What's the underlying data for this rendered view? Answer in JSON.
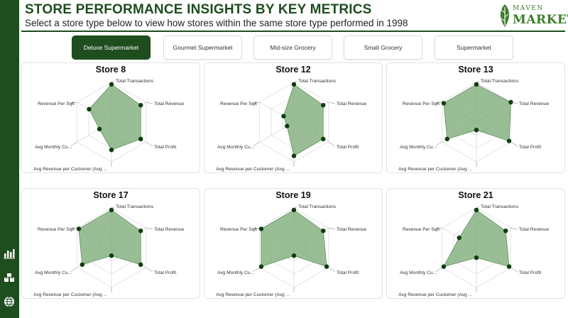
{
  "header": {
    "title": "STORE PERFORMANCE INSIGHTS BY KEY METRICS",
    "subtitle": "Select a store type below to view how stores within the same store type performed in 1998"
  },
  "logo": {
    "line1": "MAVEN",
    "line2": "MARKET"
  },
  "store_types": [
    {
      "label": "Deluxe Supermarket",
      "selected": true
    },
    {
      "label": "Gourmet Supermarket",
      "selected": false
    },
    {
      "label": "Mid-size Grocery",
      "selected": false
    },
    {
      "label": "Small Grocery",
      "selected": false
    },
    {
      "label": "Supermarket",
      "selected": false
    }
  ],
  "sidebar_icons": [
    "bar-chart-icon",
    "boxes-icon",
    "globe-icon"
  ],
  "colors": {
    "accent": "#1e4d1e",
    "fill": "#7fae7a",
    "marker": "#0f3d0f"
  },
  "chart_data": [
    {
      "type": "radar",
      "title": "Store 8",
      "axes": [
        "Total Transactions",
        "Total Revenue",
        "Total Profit",
        "Avg Revenue per Customer (Avg ...",
        "Avg Monthly Cu...",
        "Revenue Per Sqft"
      ],
      "values": [
        0.95,
        0.85,
        0.85,
        0.7,
        0.35,
        0.65
      ],
      "range": [
        0,
        1
      ]
    },
    {
      "type": "radar",
      "title": "Store 12",
      "axes": [
        "Total Transactions",
        "Total Revenue",
        "Total Profit",
        "Avg Revenue per Customer (Avg ...",
        "Avg Monthly Cu...",
        "Revenue Per Sqft"
      ],
      "values": [
        0.95,
        0.85,
        0.85,
        0.85,
        0.2,
        0.3
      ],
      "range": [
        0,
        1
      ]
    },
    {
      "type": "radar",
      "title": "Store 13",
      "axes": [
        "Total Transactions",
        "Total Revenue",
        "Total Profit",
        "Avg Revenue per Customer (Avg ...",
        "Avg Monthly Cu...",
        "Revenue Per Sqft"
      ],
      "values": [
        0.95,
        1.0,
        0.95,
        0.2,
        0.85,
        0.95
      ],
      "range": [
        0,
        1
      ]
    },
    {
      "type": "radar",
      "title": "Store 17",
      "axes": [
        "Total Transactions",
        "Total Revenue",
        "Total Profit",
        "Avg Revenue per Customer (Avg ...",
        "Avg Monthly Cu...",
        "Revenue Per Sqft"
      ],
      "values": [
        0.95,
        0.85,
        0.85,
        0.2,
        0.85,
        0.95
      ],
      "range": [
        0,
        1
      ]
    },
    {
      "type": "radar",
      "title": "Store 19",
      "axes": [
        "Total Transactions",
        "Total Revenue",
        "Total Profit",
        "Avg Revenue per Customer (Avg ...",
        "Avg Monthly Cu...",
        "Revenue Per Sqft"
      ],
      "values": [
        0.95,
        0.85,
        0.95,
        0.2,
        0.95,
        0.95
      ],
      "range": [
        0,
        1
      ]
    },
    {
      "type": "radar",
      "title": "Store 21",
      "axes": [
        "Total Transactions",
        "Total Revenue",
        "Total Profit",
        "Avg Revenue per Customer (Avg ...",
        "Avg Monthly Cu...",
        "Revenue Per Sqft"
      ],
      "values": [
        0.95,
        0.85,
        0.95,
        0.25,
        0.95,
        0.5
      ],
      "range": [
        0,
        1
      ]
    }
  ]
}
